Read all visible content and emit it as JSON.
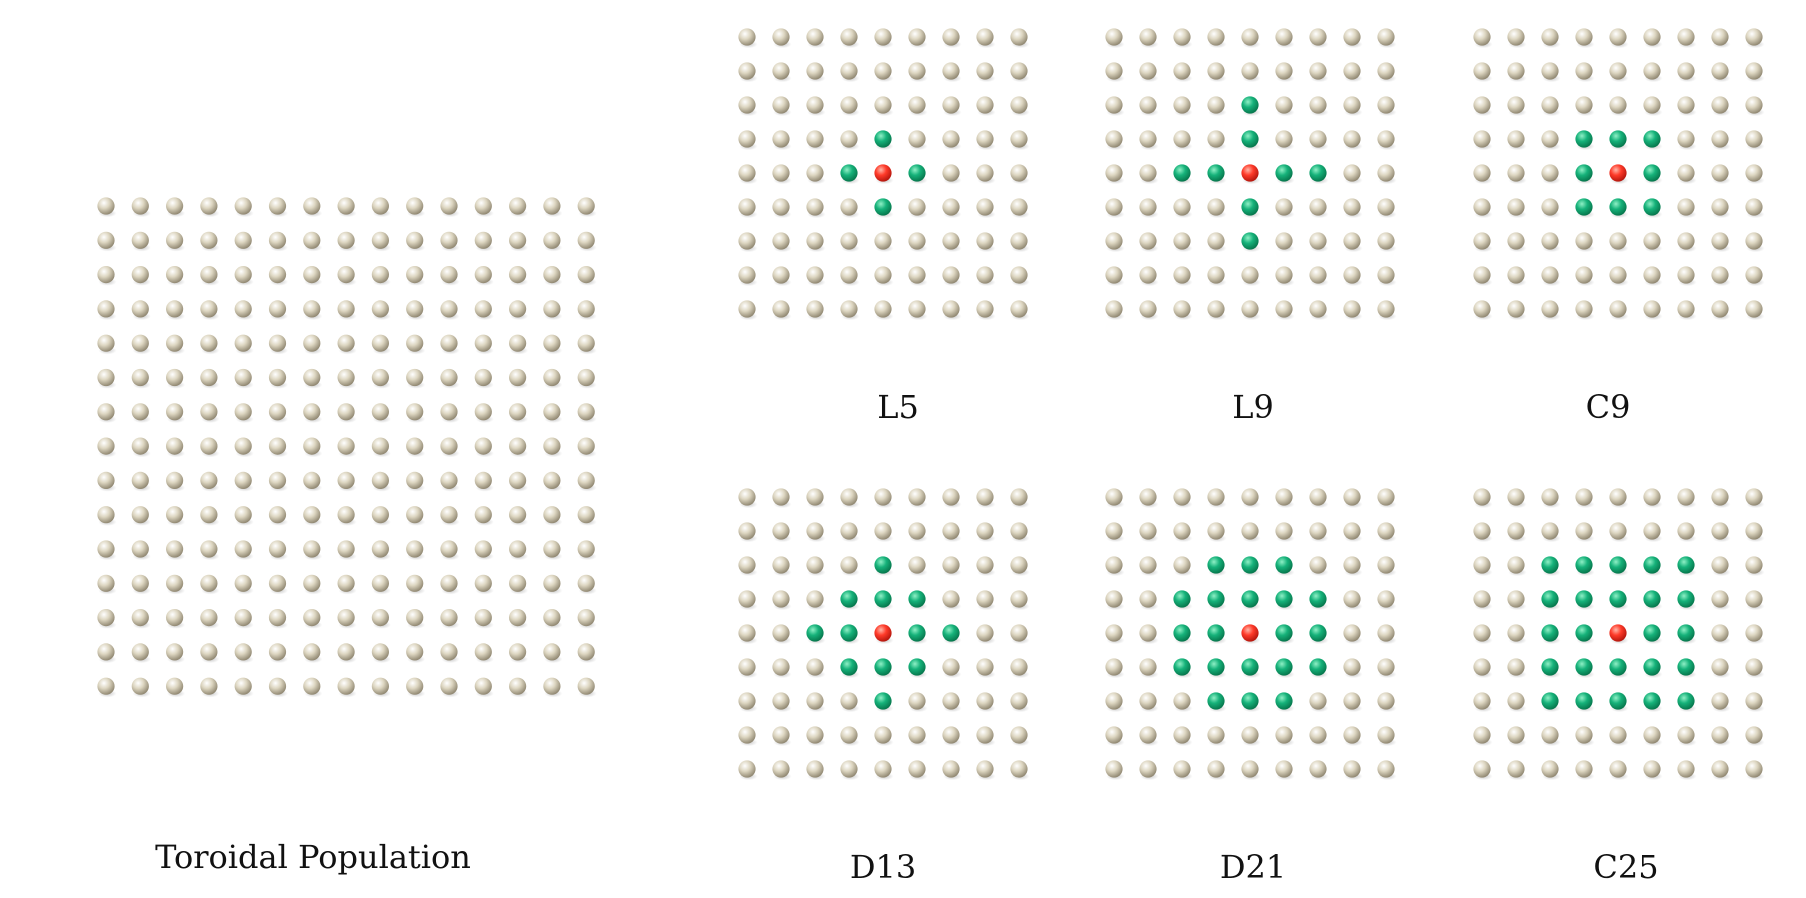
{
  "population": {
    "label": "Toroidal Population",
    "rows": 15,
    "cols": 15
  },
  "neighborhoods": [
    {
      "label": "L5",
      "rows": 9,
      "cols": 9,
      "center": [
        4,
        4
      ],
      "members": [
        [
          3,
          4
        ],
        [
          4,
          3
        ],
        [
          4,
          5
        ],
        [
          5,
          4
        ]
      ]
    },
    {
      "label": "L9",
      "rows": 9,
      "cols": 9,
      "center": [
        4,
        4
      ],
      "members": [
        [
          2,
          4
        ],
        [
          3,
          4
        ],
        [
          4,
          2
        ],
        [
          4,
          3
        ],
        [
          4,
          5
        ],
        [
          4,
          6
        ],
        [
          5,
          4
        ],
        [
          6,
          4
        ]
      ]
    },
    {
      "label": "C9",
      "rows": 9,
      "cols": 9,
      "center": [
        4,
        4
      ],
      "members": [
        [
          3,
          3
        ],
        [
          3,
          4
        ],
        [
          3,
          5
        ],
        [
          4,
          3
        ],
        [
          4,
          5
        ],
        [
          5,
          3
        ],
        [
          5,
          4
        ],
        [
          5,
          5
        ]
      ]
    },
    {
      "label": "D13",
      "rows": 9,
      "cols": 9,
      "center": [
        4,
        4
      ],
      "members": [
        [
          2,
          4
        ],
        [
          3,
          3
        ],
        [
          3,
          4
        ],
        [
          3,
          5
        ],
        [
          4,
          2
        ],
        [
          4,
          3
        ],
        [
          4,
          5
        ],
        [
          4,
          6
        ],
        [
          5,
          3
        ],
        [
          5,
          4
        ],
        [
          5,
          5
        ],
        [
          6,
          4
        ]
      ]
    },
    {
      "label": "D21",
      "rows": 9,
      "cols": 9,
      "center": [
        4,
        4
      ],
      "members": [
        [
          2,
          3
        ],
        [
          2,
          4
        ],
        [
          2,
          5
        ],
        [
          3,
          2
        ],
        [
          3,
          3
        ],
        [
          3,
          4
        ],
        [
          3,
          5
        ],
        [
          3,
          6
        ],
        [
          4,
          2
        ],
        [
          4,
          3
        ],
        [
          4,
          5
        ],
        [
          4,
          6
        ],
        [
          5,
          2
        ],
        [
          5,
          3
        ],
        [
          5,
          4
        ],
        [
          5,
          5
        ],
        [
          5,
          6
        ],
        [
          6,
          3
        ],
        [
          6,
          4
        ],
        [
          6,
          5
        ]
      ]
    },
    {
      "label": "C25",
      "rows": 9,
      "cols": 9,
      "center": [
        4,
        4
      ],
      "members": [
        [
          2,
          2
        ],
        [
          2,
          3
        ],
        [
          2,
          4
        ],
        [
          2,
          5
        ],
        [
          2,
          6
        ],
        [
          3,
          2
        ],
        [
          3,
          3
        ],
        [
          3,
          4
        ],
        [
          3,
          5
        ],
        [
          3,
          6
        ],
        [
          4,
          2
        ],
        [
          4,
          3
        ],
        [
          4,
          5
        ],
        [
          4,
          6
        ],
        [
          5,
          2
        ],
        [
          5,
          3
        ],
        [
          5,
          4
        ],
        [
          5,
          5
        ],
        [
          5,
          6
        ],
        [
          6,
          2
        ],
        [
          6,
          3
        ],
        [
          6,
          4
        ],
        [
          6,
          5
        ],
        [
          6,
          6
        ]
      ]
    }
  ],
  "colors": {
    "background": "#ffffff",
    "individual": "#d9d2bd",
    "individual_shade": "#8f8670",
    "neighbor": "#16b27a",
    "neighbor_shade": "#06754b",
    "center": "#ff3b2a",
    "center_shade": "#b3150c"
  }
}
